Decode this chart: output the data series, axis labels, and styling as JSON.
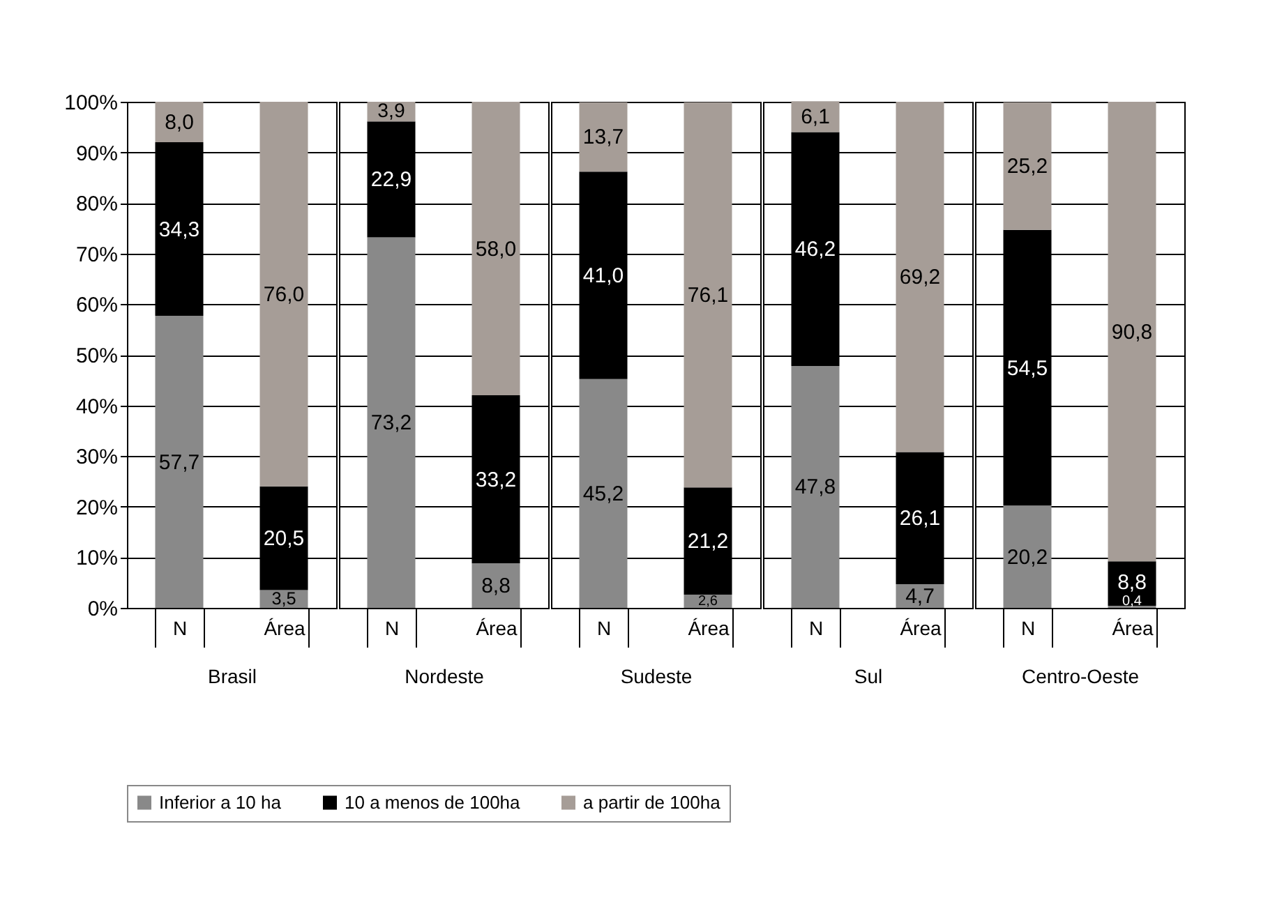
{
  "chart_data": [
    {
      "type": "bar",
      "stacked": true,
      "xlabel": "Brasil",
      "categories": [
        "N",
        "Área"
      ],
      "ylim": [
        0,
        100
      ],
      "yticks": [
        {
          "value": 0,
          "label": "0%"
        },
        {
          "value": 10,
          "label": "10%"
        },
        {
          "value": 20,
          "label": "20%"
        },
        {
          "value": 30,
          "label": "30%"
        },
        {
          "value": 40,
          "label": "40%"
        },
        {
          "value": 50,
          "label": "50%"
        },
        {
          "value": 60,
          "label": "60%"
        },
        {
          "value": 70,
          "label": "70%"
        },
        {
          "value": 80,
          "label": "80%"
        },
        {
          "value": 90,
          "label": "90%"
        },
        {
          "value": 100,
          "label": "100%"
        }
      ],
      "grid": "y",
      "legend": "bottom",
      "series": [
        {
          "name": "Inferior a 10 ha",
          "color": "#898989",
          "values": [
            57.7,
            3.5
          ],
          "value_labels": [
            "57,7",
            "3,5"
          ]
        },
        {
          "name": "10 a menos de 100ha",
          "color": "#000000",
          "values": [
            34.3,
            20.5
          ],
          "value_labels": [
            "34,3",
            "20,5"
          ]
        },
        {
          "name": "a partir de 100ha",
          "color": "#a69d97",
          "values": [
            8.0,
            76.0
          ],
          "value_labels": [
            "8,0",
            "76,0"
          ]
        }
      ]
    },
    {
      "type": "bar",
      "stacked": true,
      "xlabel": "Nordeste",
      "categories": [
        "N",
        "Área"
      ],
      "ylim": [
        0,
        100
      ],
      "yticks": [
        {
          "value": 0,
          "label": null
        },
        {
          "value": 10,
          "label": null
        },
        {
          "value": 20,
          "label": null
        },
        {
          "value": 30,
          "label": null
        },
        {
          "value": 40,
          "label": null
        },
        {
          "value": 50,
          "label": null
        },
        {
          "value": 60,
          "label": null
        },
        {
          "value": 70,
          "label": null
        },
        {
          "value": 80,
          "label": null
        },
        {
          "value": 90,
          "label": null
        },
        {
          "value": 100,
          "label": null
        }
      ],
      "grid": "y",
      "legend": "bottom",
      "tick_labels": "x",
      "series": [
        {
          "name": "Inferior a 10 ha",
          "color": "#898989",
          "values": [
            73.2,
            8.8
          ],
          "value_labels": [
            "73,2",
            "8,8"
          ]
        },
        {
          "name": "10 a menos de 100ha",
          "color": "#000000",
          "values": [
            22.9,
            33.2
          ],
          "value_labels": [
            "22,9",
            "33,2"
          ]
        },
        {
          "name": "a partir de 100ha",
          "color": "#a69d97",
          "values": [
            3.9,
            58.0
          ],
          "value_labels": [
            "3,9",
            "58,0"
          ]
        }
      ]
    },
    {
      "type": "bar",
      "stacked": true,
      "xlabel": "Sudeste",
      "categories": [
        "N",
        "Área"
      ],
      "ylim": [
        0,
        100
      ],
      "yticks": [
        {
          "value": 0,
          "label": null
        },
        {
          "value": 10,
          "label": null
        },
        {
          "value": 20,
          "label": null
        },
        {
          "value": 30,
          "label": null
        },
        {
          "value": 40,
          "label": null
        },
        {
          "value": 50,
          "label": null
        },
        {
          "value": 60,
          "label": null
        },
        {
          "value": 70,
          "label": null
        },
        {
          "value": 80,
          "label": null
        },
        {
          "value": 90,
          "label": null
        },
        {
          "value": 100,
          "label": null
        }
      ],
      "grid": "y",
      "legend": "bottom",
      "tick_labels": "x",
      "series": [
        {
          "name": "Inferior a 10 ha",
          "color": "#898989",
          "values": [
            45.2,
            2.6
          ],
          "value_labels": [
            "45,2",
            "2,6"
          ]
        },
        {
          "name": "10 a menos de 100ha",
          "color": "#000000",
          "values": [
            41.0,
            21.2
          ],
          "value_labels": [
            "41,0",
            "21,2"
          ]
        },
        {
          "name": "a partir de 100ha",
          "color": "#a69d97",
          "values": [
            13.7,
            76.1
          ],
          "value_labels": [
            "13,7",
            "76,1"
          ]
        }
      ]
    },
    {
      "type": "bar",
      "stacked": true,
      "xlabel": "Sul",
      "categories": [
        "N",
        "Área"
      ],
      "ylim": [
        0,
        100
      ],
      "yticks": [
        {
          "value": 0,
          "label": null
        },
        {
          "value": 10,
          "label": null
        },
        {
          "value": 20,
          "label": null
        },
        {
          "value": 30,
          "label": null
        },
        {
          "value": 40,
          "label": null
        },
        {
          "value": 50,
          "label": null
        },
        {
          "value": 60,
          "label": null
        },
        {
          "value": 70,
          "label": null
        },
        {
          "value": 80,
          "label": null
        },
        {
          "value": 90,
          "label": null
        },
        {
          "value": 100,
          "label": null
        }
      ],
      "grid": "y",
      "legend": "bottom",
      "tick_labels": "x",
      "series": [
        {
          "name": "Inferior a 10 ha",
          "color": "#898989",
          "values": [
            47.8,
            4.7
          ],
          "value_labels": [
            "47,8",
            "4,7"
          ]
        },
        {
          "name": "10 a menos de 100ha",
          "color": "#000000",
          "values": [
            46.2,
            26.1
          ],
          "value_labels": [
            "46,2",
            "26,1"
          ]
        },
        {
          "name": "a partir de 100ha",
          "color": "#a69d97",
          "values": [
            6.1,
            69.2
          ],
          "value_labels": [
            "6,1",
            "69,2"
          ]
        }
      ]
    },
    {
      "type": "bar",
      "stacked": true,
      "xlabel": "Centro-Oeste",
      "categories": [
        "N",
        "Área"
      ],
      "ylim": [
        0,
        100
      ],
      "yticks": [
        {
          "value": 0,
          "label": null
        },
        {
          "value": 10,
          "label": null
        },
        {
          "value": 20,
          "label": null
        },
        {
          "value": 30,
          "label": null
        },
        {
          "value": 40,
          "label": null
        },
        {
          "value": 50,
          "label": null
        },
        {
          "value": 60,
          "label": null
        },
        {
          "value": 70,
          "label": null
        },
        {
          "value": 80,
          "label": null
        },
        {
          "value": 90,
          "label": null
        },
        {
          "value": 100,
          "label": null
        }
      ],
      "grid": "y",
      "legend": "bottom",
      "tick_labels": "x",
      "series": [
        {
          "name": "Inferior a 10 ha",
          "color": "#898989",
          "values": [
            20.2,
            0.4
          ],
          "value_labels": [
            "20,2",
            "0,4"
          ]
        },
        {
          "name": "10 a menos de 100ha",
          "color": "#000000",
          "values": [
            54.5,
            8.8
          ],
          "value_labels": [
            "54,5",
            "8,8"
          ]
        },
        {
          "name": "a partir de 100ha",
          "color": "#a69d97",
          "values": [
            25.2,
            90.8
          ],
          "value_labels": [
            "25,2",
            "90,8"
          ]
        }
      ]
    }
  ]
}
